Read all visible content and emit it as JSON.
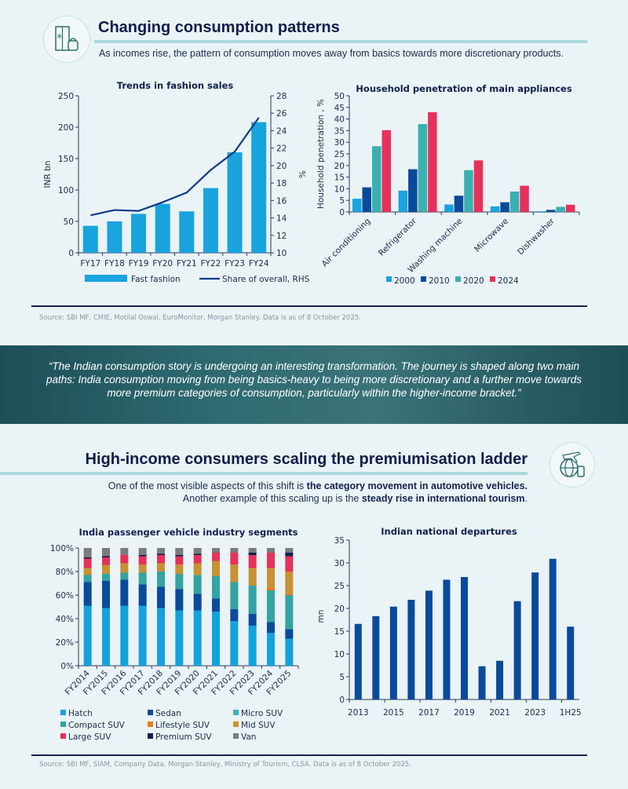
{
  "section1": {
    "title": "Changing consumption patterns",
    "subtitle": "As incomes rise, the pattern of consumption moves away from basics towards more discretionary products.",
    "icon": "fridge-and-appliance-icon",
    "source": "Source: SBI MF, CMIE, Motilal Oswal, EuroMonitor, Morgan Stanley. Data is as of 8 October 2025."
  },
  "quote": "“The Indian consumption story is undergoing an interesting transformation. The journey is shaped along two main paths: India consumption moving from being basics-heavy to being more discretionary and a further move towards more premium categories of consumption, particularly within the higher-income bracket.”",
  "section2": {
    "title": "High-income consumers scaling the premiumisation ladder",
    "line1_plain": "One of the most visible aspects of this shift is ",
    "line1_bold": "the category movement in automotive vehicles.",
    "line2_plain": "Another example of this scaling up is the ",
    "line2_bold": "steady rise in international tourism",
    "line2_end": ".",
    "icon": "globe-plane-luggage-icon",
    "source": "Source: SBI MF, SIAM, Company Data, Morgan Stanley, Ministry of Tourism, CLSA. Data is as of 8 October 2025."
  },
  "chart_data": [
    {
      "type": "bar+line",
      "title": "Trends in fashion sales",
      "categories": [
        "FY17",
        "FY18",
        "FY19",
        "FY20",
        "FY21",
        "FY22",
        "FY23",
        "FY24"
      ],
      "series": [
        {
          "name": "Fast fashion",
          "type": "bar",
          "axis": "left",
          "color": "#19a3df",
          "values": [
            43,
            50,
            62,
            78,
            66,
            103,
            160,
            208
          ]
        },
        {
          "name": "Share of overall, RHS",
          "type": "line",
          "axis": "right",
          "color": "#0d3a8a",
          "values": [
            14.3,
            14.9,
            14.8,
            15.8,
            16.9,
            19.5,
            21.6,
            25.5
          ]
        }
      ],
      "ylabel": "INR bn",
      "ylim": [
        0,
        250
      ],
      "yticks": [
        "0",
        "50",
        "100",
        "150",
        "200",
        "250"
      ],
      "y2label": "%",
      "y2lim": [
        10,
        28
      ],
      "y2ticks": [
        "10",
        "12",
        "14",
        "16",
        "18",
        "20",
        "22",
        "24",
        "26",
        "28"
      ],
      "legend": "bottom",
      "grid": false
    },
    {
      "type": "bar",
      "title": "Household penetration of main appliances",
      "categories": [
        "Air conditioning",
        "Refrigerator",
        "Washing machine",
        "Microwave",
        "Dishwasher"
      ],
      "series": [
        {
          "name": "2000",
          "color": "#19a3df",
          "values": [
            5.7,
            9.2,
            3.2,
            2.4,
            0.3
          ]
        },
        {
          "name": "2010",
          "color": "#0b4a9b",
          "values": [
            10.6,
            18.4,
            7.0,
            4.2,
            0.9
          ]
        },
        {
          "name": "2020",
          "color": "#3bb0b0",
          "values": [
            28.3,
            37.8,
            18.0,
            8.8,
            2.2
          ]
        },
        {
          "name": "2024",
          "color": "#e6315b",
          "values": [
            35.2,
            42.9,
            22.2,
            11.3,
            3.1
          ]
        }
      ],
      "ylabel": "Household penetration , %",
      "ylim": [
        0,
        50
      ],
      "yticks": [
        "0",
        "5",
        "10",
        "15",
        "20",
        "25",
        "30",
        "35",
        "40",
        "45",
        "50"
      ],
      "legend": "bottom",
      "grid": false
    },
    {
      "type": "stacked-bar",
      "title": "India passenger vehicle industry segments",
      "categories": [
        "FY2014",
        "FY2015",
        "FY2016",
        "FY2017",
        "FY2018",
        "FY2019",
        "FY2020",
        "FY2021",
        "FY2022",
        "FY2023",
        "FY2024",
        "FY2025"
      ],
      "series": [
        {
          "name": "Hatch",
          "color": "#13a2de",
          "values": [
            51,
            49,
            51,
            51,
            49,
            47,
            47,
            46,
            38,
            34,
            28,
            23
          ]
        },
        {
          "name": "Sedan",
          "color": "#0b4a9b",
          "values": [
            20,
            23,
            22,
            18,
            18,
            18,
            14,
            11,
            10,
            10,
            9,
            8
          ]
        },
        {
          "name": "Micro SUV",
          "color": "#3cb3b8",
          "values": [
            0,
            0,
            0,
            0,
            0,
            0,
            0,
            0,
            0,
            0,
            0,
            0
          ]
        },
        {
          "name": "Compact SUV",
          "color": "#33a3a3",
          "values": [
            6,
            6,
            6,
            10,
            13,
            13,
            16,
            19,
            23,
            24,
            27,
            29
          ]
        },
        {
          "name": "Lifestyle SUV",
          "color": "#ef7d1b",
          "values": [
            0,
            0,
            0,
            0,
            0,
            0,
            0,
            0,
            0,
            0,
            2,
            1
          ]
        },
        {
          "name": "Mid SUV",
          "color": "#c69233",
          "values": [
            6,
            7.5,
            8,
            7,
            7,
            8,
            10,
            13,
            15,
            15,
            17,
            19
          ]
        },
        {
          "name": "Large SUV",
          "color": "#e6315b",
          "values": [
            8,
            6.5,
            7,
            7,
            7,
            7,
            7,
            7,
            10,
            11,
            13,
            13
          ]
        },
        {
          "name": "Premium SUV",
          "color": "#0e1f4d",
          "values": [
            1,
            1,
            0,
            1,
            1,
            1,
            1,
            0,
            0,
            2,
            0,
            3
          ]
        },
        {
          "name": "Van",
          "color": "#7c7c7c",
          "values": [
            8,
            7,
            6,
            6,
            5,
            6,
            5,
            4,
            4,
            4,
            4,
            4
          ]
        }
      ],
      "ylim": [
        0,
        100
      ],
      "yticks": [
        "0%",
        "20%",
        "40%",
        "60%",
        "80%",
        "100%"
      ],
      "legend": "bottom",
      "grid": false
    },
    {
      "type": "bar",
      "title": "Indian national departures",
      "categories": [
        "2013",
        "2014",
        "2015",
        "2016",
        "2017",
        "2018",
        "2019",
        "2020",
        "2021",
        "2022",
        "2023",
        "2024",
        "1H25"
      ],
      "tick_labels": [
        "2013",
        "",
        "2015",
        "",
        "2017",
        "",
        "2019",
        "",
        "2021",
        "",
        "2023",
        "",
        "1H25"
      ],
      "series": [
        {
          "color": "#0b4a9b",
          "values": [
            16.6,
            18.3,
            20.4,
            21.9,
            23.9,
            26.3,
            26.9,
            7.3,
            8.5,
            21.6,
            27.9,
            30.9,
            16.0
          ]
        }
      ],
      "ylabel": "mn",
      "ylim": [
        0,
        35
      ],
      "yticks": [
        "0",
        "5",
        "10",
        "15",
        "20",
        "25",
        "30",
        "35"
      ],
      "grid": false
    }
  ]
}
